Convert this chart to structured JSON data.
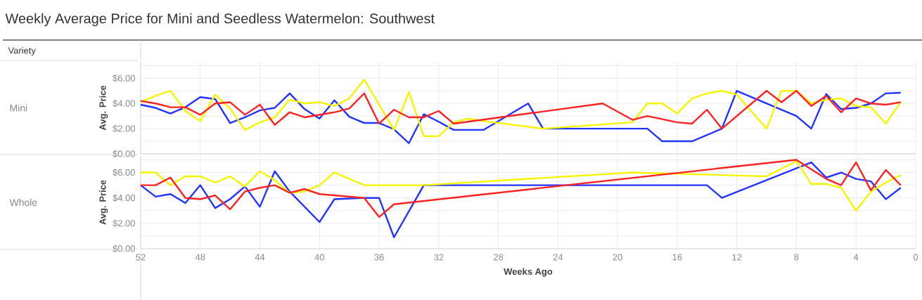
{
  "chart_data": [
    {
      "type": "line",
      "title": "Weekly Average Price for Mini and Seedless Watermelon: Southwest",
      "annotations": [
        "Variety",
        "Mini"
      ],
      "ylabel": "Avg. Price",
      "xlim": [
        52,
        0
      ],
      "xticks": [
        52,
        48,
        44,
        40,
        36,
        32,
        28,
        24,
        20,
        16,
        12,
        8,
        4,
        0
      ],
      "ylim": [
        0,
        7.3
      ],
      "yticks": [
        {
          "value": 0,
          "label": "$0.00"
        },
        {
          "value": 1,
          "label": null
        },
        {
          "value": 2,
          "label": "$2.00"
        },
        {
          "value": 3,
          "label": null
        },
        {
          "value": 4,
          "label": "$4.00"
        },
        {
          "value": 5,
          "label": null
        },
        {
          "value": 6,
          "label": "$6.00"
        },
        {
          "value": 7,
          "label": null
        }
      ],
      "grid": true,
      "tick_labels": "y",
      "series": [
        {
          "color": "#2233ff",
          "x": [
            52,
            51,
            50,
            49,
            48,
            47,
            46,
            45,
            44,
            43,
            42,
            41,
            40,
            39,
            38,
            37,
            36,
            35,
            34,
            33,
            32,
            31,
            30,
            29,
            26,
            25,
            18,
            17,
            15,
            13,
            12,
            8,
            7,
            6,
            5,
            4,
            3,
            2,
            1
          ],
          "values": [
            3.9,
            3.65,
            3.2,
            3.7,
            4.5,
            4.35,
            2.45,
            2.9,
            3.45,
            3.65,
            4.8,
            3.55,
            2.8,
            4.25,
            2.95,
            2.45,
            2.45,
            1.95,
            0.85,
            3.15,
            2.55,
            1.9,
            1.9,
            1.9,
            4.0,
            2.0,
            2.0,
            1.0,
            1.0,
            2.0,
            5.0,
            3.0,
            2.0,
            4.75,
            3.55,
            3.65,
            4.0,
            4.8,
            4.85
          ]
        },
        {
          "color": "#f5f500",
          "x": [
            52,
            51,
            50,
            49,
            48,
            47,
            46,
            45,
            44,
            43,
            42,
            41,
            40,
            39,
            38,
            37,
            35,
            34,
            33,
            32,
            31,
            30,
            29,
            25,
            19,
            18,
            17,
            16,
            15,
            14,
            13,
            12,
            10,
            9,
            8,
            7,
            6,
            5,
            4,
            3,
            2,
            1
          ],
          "values": [
            4.1,
            4.6,
            5.0,
            3.4,
            2.6,
            4.7,
            3.6,
            1.9,
            2.5,
            2.9,
            4.3,
            4.0,
            4.1,
            3.8,
            4.4,
            5.9,
            1.9,
            4.9,
            1.4,
            1.4,
            2.5,
            2.8,
            2.6,
            2.0,
            2.5,
            4.0,
            4.0,
            3.2,
            4.4,
            4.8,
            5.0,
            4.7,
            2.0,
            5.0,
            5.0,
            4.0,
            4.3,
            4.4,
            3.8,
            3.7,
            2.4,
            4.1
          ]
        },
        {
          "color": "#ff2222",
          "x": [
            52,
            51,
            50,
            49,
            48,
            47,
            46,
            45,
            44,
            43,
            42,
            41,
            40,
            39,
            38,
            37,
            36,
            35,
            34,
            33,
            32,
            31,
            21,
            19,
            18,
            16,
            15,
            14,
            13,
            10,
            9,
            8,
            7,
            6,
            5,
            4,
            3,
            2,
            1
          ],
          "values": [
            4.2,
            4.0,
            3.7,
            3.7,
            3.1,
            4.0,
            4.1,
            3.1,
            3.9,
            2.3,
            3.3,
            2.9,
            3.1,
            3.3,
            3.6,
            4.8,
            2.4,
            3.5,
            2.9,
            2.9,
            3.4,
            2.4,
            4.0,
            2.7,
            3.0,
            2.5,
            2.4,
            3.5,
            2.0,
            5.0,
            4.1,
            5.0,
            3.8,
            4.6,
            3.3,
            4.4,
            4.0,
            3.9,
            4.1
          ]
        }
      ]
    },
    {
      "type": "line",
      "annotations": [
        "Whole"
      ],
      "ylabel": "Avg. Price",
      "xlabel": "Weeks Ago",
      "xlim": [
        52,
        0
      ],
      "xticks": [
        52,
        48,
        44,
        40,
        36,
        32,
        28,
        24,
        20,
        16,
        12,
        8,
        4,
        0
      ],
      "ylim": [
        0,
        7.3
      ],
      "yticks": [
        {
          "value": 0,
          "label": "$0.00"
        },
        {
          "value": 1,
          "label": null
        },
        {
          "value": 2,
          "label": "$2.00"
        },
        {
          "value": 3,
          "label": null
        },
        {
          "value": 4,
          "label": "$4.00"
        },
        {
          "value": 5,
          "label": null
        },
        {
          "value": 6,
          "label": "$6.00"
        },
        {
          "value": 7,
          "label": null
        }
      ],
      "grid": true,
      "series": [
        {
          "color": "#2233ff",
          "x": [
            52,
            51,
            50,
            49,
            48,
            47,
            46,
            45,
            44,
            43,
            42,
            40,
            39,
            37,
            36,
            35,
            33,
            14,
            13,
            7,
            6,
            5,
            4,
            3,
            2,
            1
          ],
          "values": [
            5.0,
            4.1,
            4.3,
            3.6,
            5.0,
            3.2,
            3.9,
            4.9,
            3.3,
            6.1,
            4.5,
            2.1,
            3.9,
            4.0,
            4.0,
            0.9,
            5.0,
            5.0,
            4.0,
            6.8,
            5.6,
            6.0,
            5.5,
            5.3,
            3.9,
            4.8
          ]
        },
        {
          "color": "#f5f500",
          "x": [
            52,
            51,
            50,
            49,
            48,
            47,
            46,
            45,
            44,
            43,
            42,
            41,
            40,
            39,
            37,
            33,
            19,
            10,
            8,
            7,
            6,
            5,
            4,
            3,
            2,
            1
          ],
          "values": [
            6.0,
            6.0,
            5.0,
            5.7,
            5.7,
            5.2,
            5.7,
            4.9,
            6.1,
            5.4,
            4.4,
            4.5,
            5.0,
            6.0,
            5.0,
            5.0,
            6.0,
            5.7,
            6.9,
            5.1,
            5.1,
            4.8,
            3.0,
            4.5,
            5.2,
            5.8
          ]
        },
        {
          "color": "#ff2222",
          "x": [
            52,
            51,
            50,
            49,
            48,
            47,
            46,
            45,
            44,
            43,
            42,
            41,
            40,
            37,
            36,
            35,
            8,
            6,
            5,
            4,
            3,
            2,
            1
          ],
          "values": [
            5.0,
            5.0,
            5.6,
            4.0,
            3.9,
            4.2,
            3.1,
            4.5,
            4.8,
            5.0,
            4.4,
            4.7,
            4.3,
            4.0,
            2.5,
            3.5,
            7.0,
            5.5,
            5.0,
            6.8,
            4.6,
            6.2,
            5.0
          ]
        }
      ]
    }
  ]
}
